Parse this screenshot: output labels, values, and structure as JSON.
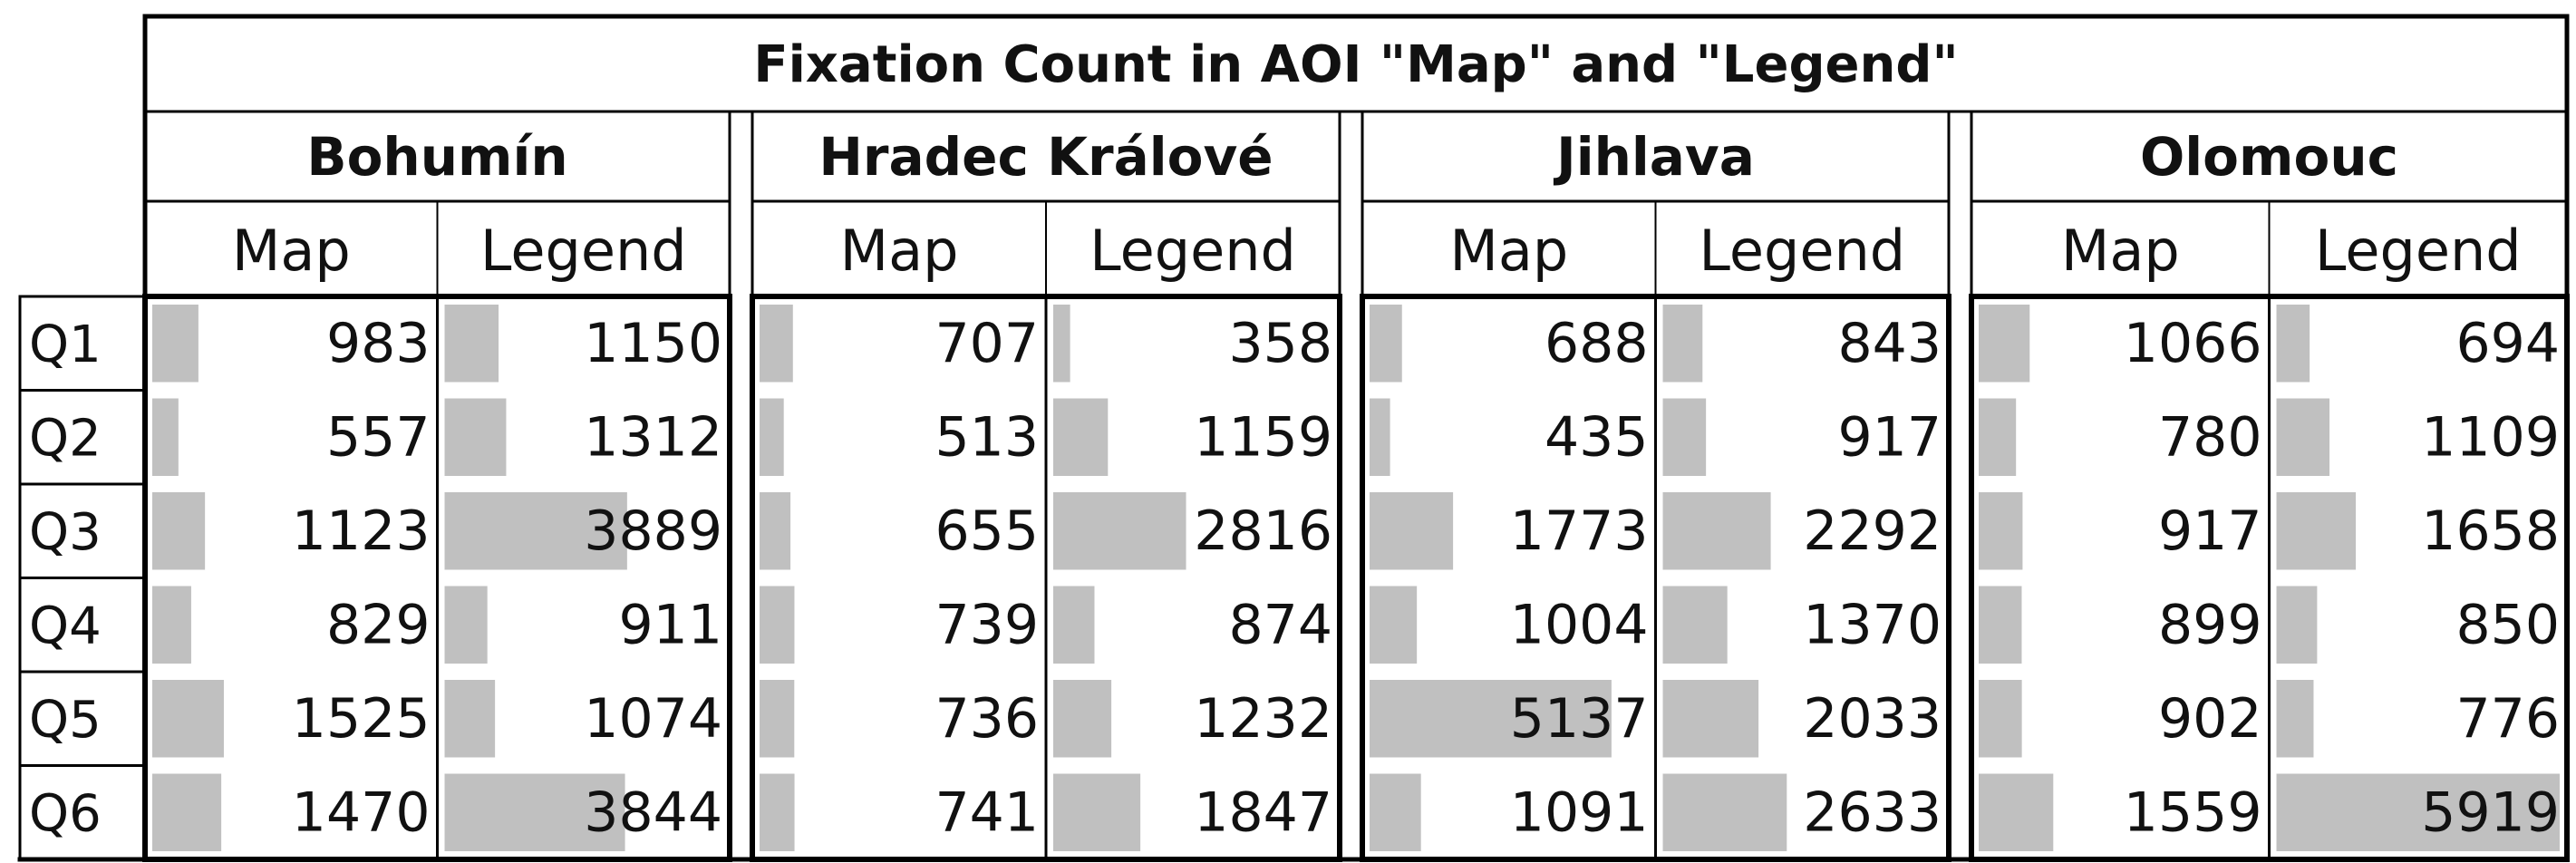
{
  "chart_data": {
    "type": "table",
    "title": "Fixation Count in AOI \"Map\" and \"Legend\"",
    "groups": [
      "Bohumín",
      "Hradec Králové",
      "Jihlava",
      "Olomouc"
    ],
    "subcolumns": [
      "Map",
      "Legend"
    ],
    "rows": [
      "Q1",
      "Q2",
      "Q3",
      "Q4",
      "Q5",
      "Q6"
    ],
    "values": [
      [
        [
          983,
          1150
        ],
        [
          707,
          358
        ],
        [
          688,
          843
        ],
        [
          1066,
          694
        ]
      ],
      [
        [
          557,
          1312
        ],
        [
          513,
          1159
        ],
        [
          435,
          917
        ],
        [
          780,
          1109
        ]
      ],
      [
        [
          1123,
          3889
        ],
        [
          655,
          2816
        ],
        [
          1773,
          2292
        ],
        [
          917,
          1658
        ]
      ],
      [
        [
          829,
          911
        ],
        [
          739,
          874
        ],
        [
          1004,
          1370
        ],
        [
          899,
          850
        ]
      ],
      [
        [
          1525,
          1074
        ],
        [
          736,
          1232
        ],
        [
          5137,
          2033
        ],
        [
          902,
          776
        ]
      ],
      [
        [
          1470,
          3844
        ],
        [
          741,
          1847
        ],
        [
          1091,
          2633
        ],
        [
          1559,
          5919
        ]
      ]
    ],
    "bar_max": 5919,
    "bar_color": "#c0c0c0"
  }
}
